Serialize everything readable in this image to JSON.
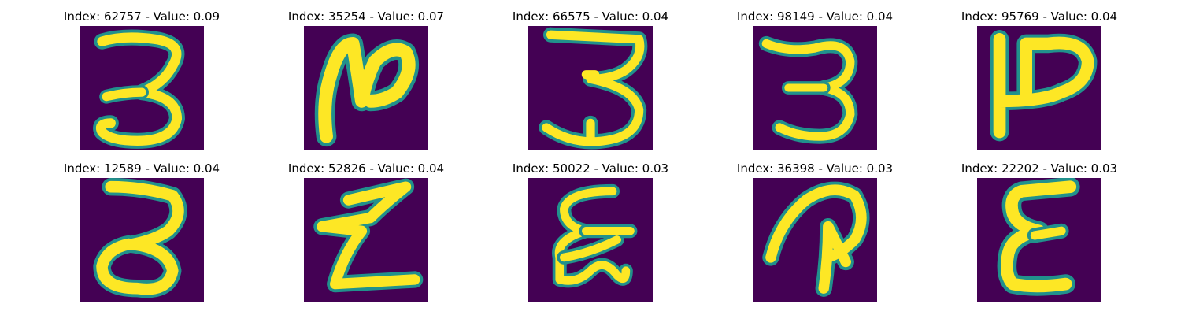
{
  "panels": [
    {
      "index": "62757",
      "value": "0.09",
      "title": "Index: 62757 - Value: 0.09",
      "glyph": "three-icon"
    },
    {
      "index": "35254",
      "value": "0.07",
      "title": "Index: 35254 - Value: 0.07",
      "glyph": "handwritten-stroke-icon"
    },
    {
      "index": "66575",
      "value": "0.04",
      "title": "Index: 66575 - Value: 0.04",
      "glyph": "three-icon"
    },
    {
      "index": "98149",
      "value": "0.04",
      "title": "Index: 98149 - Value: 0.04",
      "glyph": "three-icon"
    },
    {
      "index": "95769",
      "value": "0.04",
      "title": "Index: 95769 - Value: 0.04",
      "glyph": "handwritten-stroke-icon"
    },
    {
      "index": "12589",
      "value": "0.04",
      "title": "Index: 12589 - Value: 0.04",
      "glyph": "three-icon"
    },
    {
      "index": "52826",
      "value": "0.04",
      "title": "Index: 52826 - Value: 0.04",
      "glyph": "handwritten-stroke-icon"
    },
    {
      "index": "50022",
      "value": "0.03",
      "title": "Index: 50022 - Value: 0.03",
      "glyph": "handwritten-stroke-icon"
    },
    {
      "index": "36398",
      "value": "0.03",
      "title": "Index: 36398 - Value: 0.03",
      "glyph": "handwritten-stroke-icon"
    },
    {
      "index": "22202",
      "value": "0.03",
      "title": "Index: 22202 - Value: 0.03",
      "glyph": "handwritten-stroke-icon"
    }
  ],
  "colors": {
    "background": "#440154",
    "stroke_core": "#fde725",
    "stroke_edge": "#21918c"
  }
}
